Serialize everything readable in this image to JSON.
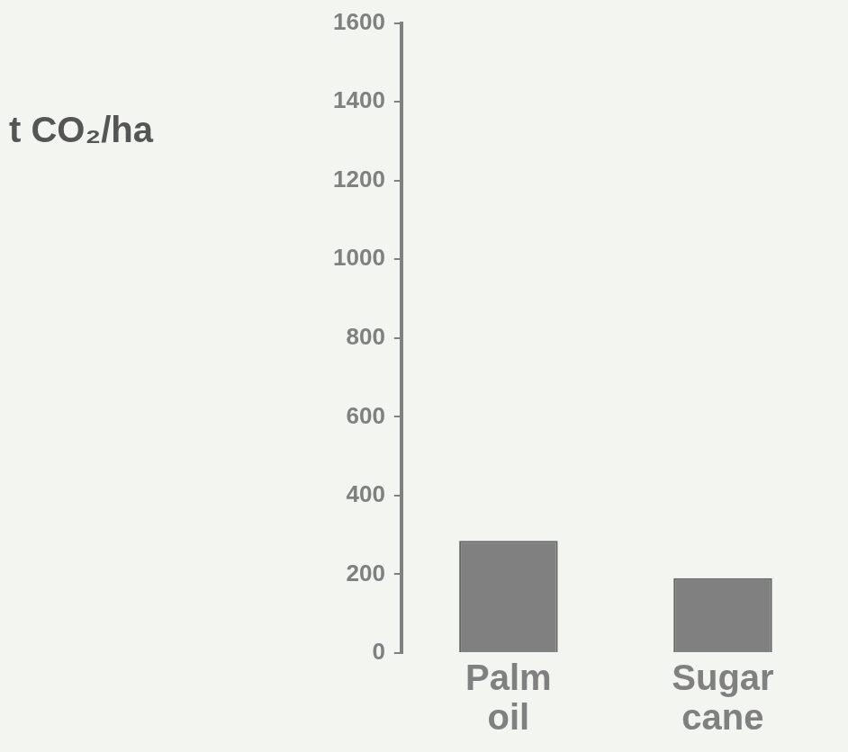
{
  "chart_data": {
    "type": "bar",
    "ylabel": "t CO₂/ha",
    "categories": [
      "Palm oil",
      "Sugar cane"
    ],
    "values": [
      285,
      190
    ],
    "color": "#808080",
    "ylim": [
      0,
      1600
    ],
    "yticks": [
      0,
      200,
      400,
      600,
      800,
      1000,
      1200,
      1400,
      1600
    ],
    "grid": false
  }
}
